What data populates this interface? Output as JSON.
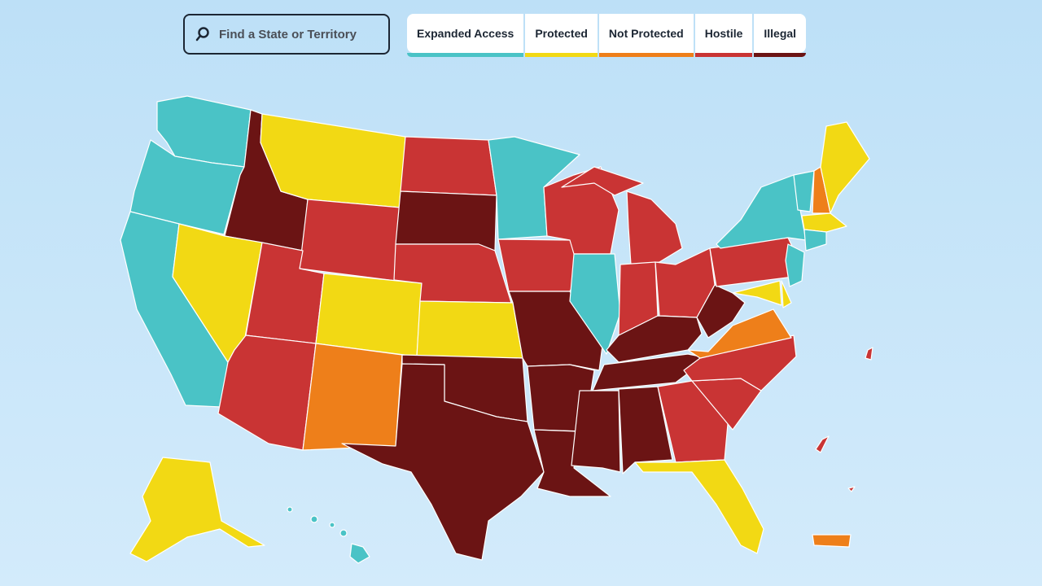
{
  "search": {
    "placeholder": "Find a State or Territory"
  },
  "legend": {
    "items": [
      {
        "label": "Expanded Access",
        "color": "#4ac3c6"
      },
      {
        "label": "Protected",
        "color": "#f2d914"
      },
      {
        "label": "Not Protected",
        "color": "#ee7f1a"
      },
      {
        "label": "Hostile",
        "color": "#c93434"
      },
      {
        "label": "Illegal",
        "color": "#6b1414"
      }
    ]
  }
}
